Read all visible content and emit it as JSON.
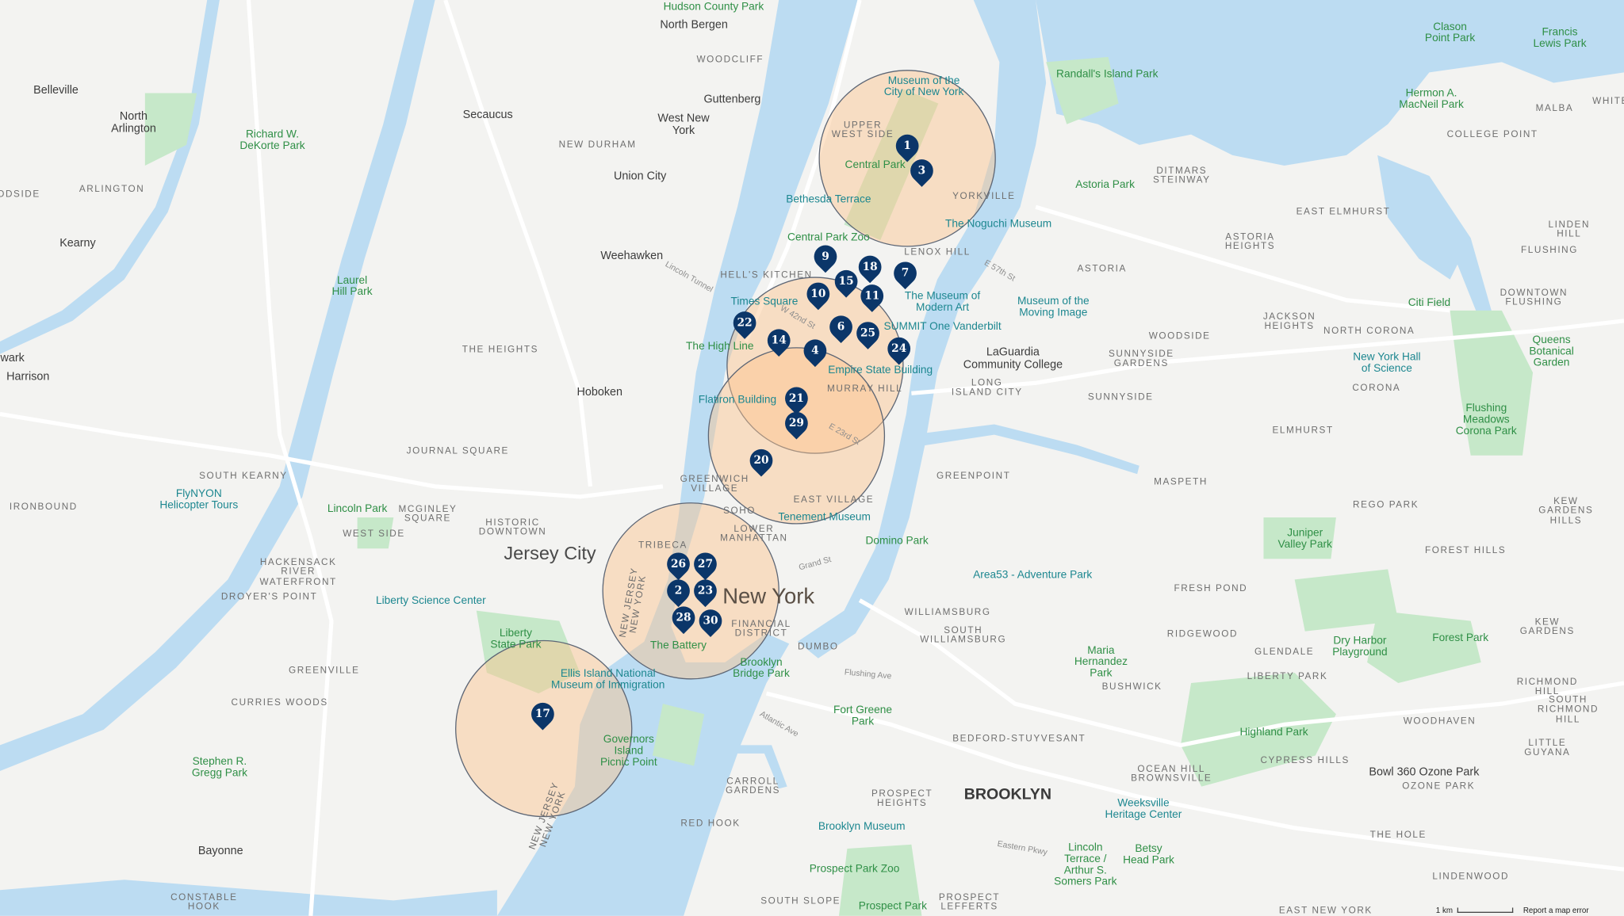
{
  "colors": {
    "water": "#bcdcf2",
    "land": "#f3f3f1",
    "park": "#c6e8c9",
    "marker": "#0b3669",
    "circle_fill": "#fdc48c",
    "circle_stroke": "#5d6675"
  },
  "labels": [
    {
      "text": "Hudson County Park",
      "kind": "park"
    },
    {
      "text": "North Bergen",
      "kind": "city"
    },
    {
      "text": "WOODCLIFF",
      "kind": "nbh"
    },
    {
      "text": "Guttenberg",
      "kind": "city"
    },
    {
      "text": "West New\nYork",
      "kind": "city"
    },
    {
      "text": "Secaucus",
      "kind": "city"
    },
    {
      "text": "NEW DURHAM",
      "kind": "nbh"
    },
    {
      "text": "Union City",
      "kind": "city"
    },
    {
      "text": "Weehawken",
      "kind": "city"
    },
    {
      "text": "Hoboken",
      "kind": "city"
    },
    {
      "text": "Belleville",
      "kind": "city"
    },
    {
      "text": "North\nArlington",
      "kind": "city"
    },
    {
      "text": "ARLINGTON",
      "kind": "nbh"
    },
    {
      "text": "Kearny",
      "kind": "city"
    },
    {
      "text": "Harrison",
      "kind": "city"
    },
    {
      "text": "wark",
      "kind": "city"
    },
    {
      "text": "ODSIDE",
      "kind": "nbh"
    },
    {
      "text": "Richard W.\nDeKorte Park",
      "kind": "park"
    },
    {
      "text": "Laurel\nHill Park",
      "kind": "park"
    },
    {
      "text": "THE HEIGHTS",
      "kind": "nbh"
    },
    {
      "text": "JOURNAL SQUARE",
      "kind": "nbh"
    },
    {
      "text": "SOUTH KEARNY",
      "kind": "nbh"
    },
    {
      "text": "IRONBOUND",
      "kind": "nbh"
    },
    {
      "text": "FlyNYON\nHelicopter Tours",
      "kind": "poi"
    },
    {
      "text": "Lincoln Park",
      "kind": "park"
    },
    {
      "text": "MCGINLEY\nSQUARE",
      "kind": "nbh"
    },
    {
      "text": "WEST SIDE",
      "kind": "nbh"
    },
    {
      "text": "HISTORIC\nDOWNTOWN",
      "kind": "nbh"
    },
    {
      "text": "Jersey City",
      "kind": "big"
    },
    {
      "text": "HACKENSACK\nRIVER\nWATERFRONT",
      "kind": "nbh"
    },
    {
      "text": "DROYER'S POINT",
      "kind": "nbh"
    },
    {
      "text": "Liberty Science Center",
      "kind": "poi"
    },
    {
      "text": "Liberty\nState Park",
      "kind": "park"
    },
    {
      "text": "GREENVILLE",
      "kind": "nbh"
    },
    {
      "text": "CURRIES WOODS",
      "kind": "nbh"
    },
    {
      "text": "Ellis Island National\nMuseum of Immigration",
      "kind": "poi"
    },
    {
      "text": "Governors\nIsland\nPicnic Point",
      "kind": "park"
    },
    {
      "text": "Stephen R.\nGregg Park",
      "kind": "park"
    },
    {
      "text": "Bayonne",
      "kind": "city"
    },
    {
      "text": "CONSTABLE\nHOOK",
      "kind": "nbh"
    },
    {
      "text": "Museum of the\nCity of New York",
      "kind": "poi"
    },
    {
      "text": "UPPER\nWEST SIDE",
      "kind": "nbh"
    },
    {
      "text": "Central Park",
      "kind": "park"
    },
    {
      "text": "YORKVILLE",
      "kind": "nbh"
    },
    {
      "text": "Bethesda Terrace",
      "kind": "poi"
    },
    {
      "text": "Central Park Zoo",
      "kind": "park"
    },
    {
      "text": "The Noguchi Museum",
      "kind": "poi"
    },
    {
      "text": "LENOX HILL",
      "kind": "nbh"
    },
    {
      "text": "HELL'S KITCHEN",
      "kind": "nbh"
    },
    {
      "text": "The Museum of\nModern Art",
      "kind": "poi"
    },
    {
      "text": "Times Square",
      "kind": "poi"
    },
    {
      "text": "SUMMIT One Vanderbilt",
      "kind": "poi"
    },
    {
      "text": "The High Line",
      "kind": "park"
    },
    {
      "text": "Empire State Building",
      "kind": "poi"
    },
    {
      "text": "MURRAY HILL",
      "kind": "nbh"
    },
    {
      "text": "Flatiron Building",
      "kind": "poi"
    },
    {
      "text": "GREENWICH\nVILLAGE",
      "kind": "nbh"
    },
    {
      "text": "EAST VILLAGE",
      "kind": "nbh"
    },
    {
      "text": "Tenement Museum",
      "kind": "poi"
    },
    {
      "text": "SOHO",
      "kind": "nbh"
    },
    {
      "text": "LOWER\nMANHATTAN",
      "kind": "nbh"
    },
    {
      "text": "TRIBECA",
      "kind": "nbh"
    },
    {
      "text": "New York",
      "kind": "xl"
    },
    {
      "text": "FINANCIAL\nDISTRICT",
      "kind": "nbh"
    },
    {
      "text": "The Battery",
      "kind": "park"
    },
    {
      "text": "Domino Park",
      "kind": "park"
    },
    {
      "text": "DUMBO",
      "kind": "nbh"
    },
    {
      "text": "Brooklyn\nBridge Park",
      "kind": "park"
    },
    {
      "text": "Randall's Island Park",
      "kind": "park"
    },
    {
      "text": "Astoria Park",
      "kind": "park"
    },
    {
      "text": "DITMARS\nSTEINWAY",
      "kind": "nbh"
    },
    {
      "text": "ASTORIA\nHEIGHTS",
      "kind": "nbh"
    },
    {
      "text": "ASTORIA",
      "kind": "nbh"
    },
    {
      "text": "Museum of the\nMoving Image",
      "kind": "poi"
    },
    {
      "text": "LaGuardia\nCommunity College",
      "kind": "city"
    },
    {
      "text": "LONG\nISLAND CITY",
      "kind": "nbh"
    },
    {
      "text": "WOODSIDE",
      "kind": "nbh"
    },
    {
      "text": "SUNNYSIDE\nGARDENS",
      "kind": "nbh"
    },
    {
      "text": "SUNNYSIDE",
      "kind": "nbh"
    },
    {
      "text": "JACKSON\nHEIGHTS",
      "kind": "nbh"
    },
    {
      "text": "NORTH CORONA",
      "kind": "nbh"
    },
    {
      "text": "Citi Field",
      "kind": "park"
    },
    {
      "text": "DOWNTOWN\nFLUSHING",
      "kind": "nbh"
    },
    {
      "text": "Queens\nBotanical\nGarden",
      "kind": "park"
    },
    {
      "text": "New York Hall\nof Science",
      "kind": "poi"
    },
    {
      "text": "CORONA",
      "kind": "nbh"
    },
    {
      "text": "ELMHURST",
      "kind": "nbh"
    },
    {
      "text": "Flushing\nMeadows\nCorona Park",
      "kind": "park"
    },
    {
      "text": "GREENPOINT",
      "kind": "nbh"
    },
    {
      "text": "MASPETH",
      "kind": "nbh"
    },
    {
      "text": "REGO PARK",
      "kind": "nbh"
    },
    {
      "text": "KEW GARDENS\nHILLS",
      "kind": "nbh"
    },
    {
      "text": "FOREST HILLS",
      "kind": "nbh"
    },
    {
      "text": "Juniper\nValley Park",
      "kind": "park"
    },
    {
      "text": "Area53 - Adventure Park",
      "kind": "poi"
    },
    {
      "text": "FRESH POND",
      "kind": "nbh"
    },
    {
      "text": "WILLIAMSBURG",
      "kind": "nbh"
    },
    {
      "text": "SOUTH\nWILLIAMSBURG",
      "kind": "nbh"
    },
    {
      "text": "Maria\nHernandez\nPark",
      "kind": "park"
    },
    {
      "text": "RIDGEWOOD",
      "kind": "nbh"
    },
    {
      "text": "GLENDALE",
      "kind": "nbh"
    },
    {
      "text": "Dry Harbor\nPlayground",
      "kind": "park"
    },
    {
      "text": "Forest Park",
      "kind": "park"
    },
    {
      "text": "KEW GARDENS",
      "kind": "nbh"
    },
    {
      "text": "LIBERTY PARK",
      "kind": "nbh"
    },
    {
      "text": "BUSHWICK",
      "kind": "nbh"
    },
    {
      "text": "RICHMOND HILL",
      "kind": "nbh"
    },
    {
      "text": "SOUTH\nRICHMOND HILL",
      "kind": "nbh"
    },
    {
      "text": "WOODHAVEN",
      "kind": "nbh"
    },
    {
      "text": "Fort Greene\nPark",
      "kind": "park"
    },
    {
      "text": "BEDFORD-STUYVESANT",
      "kind": "nbh"
    },
    {
      "text": "Highland Park",
      "kind": "park"
    },
    {
      "text": "LITTLE GUYANA",
      "kind": "nbh"
    },
    {
      "text": "CYPRESS HILLS",
      "kind": "nbh"
    },
    {
      "text": "OCEAN HILL\nBROWNSVILLE",
      "kind": "nbh"
    },
    {
      "text": "Bowl 360 Ozone Park",
      "kind": "city"
    },
    {
      "text": "OZONE PARK",
      "kind": "nbh"
    },
    {
      "text": "CARROLL\nGARDENS",
      "kind": "nbh"
    },
    {
      "text": "PROSPECT\nHEIGHTS",
      "kind": "nbh"
    },
    {
      "text": "BROOKLYN",
      "kind": "bigb"
    },
    {
      "text": "Weeksville\nHeritage Center",
      "kind": "poi"
    },
    {
      "text": "RED HOOK",
      "kind": "nbh"
    },
    {
      "text": "Brooklyn Museum",
      "kind": "poi"
    },
    {
      "text": "THE HOLE",
      "kind": "nbh"
    },
    {
      "text": "Lincoln\nTerrace /\nArthur S.\nSomers Park",
      "kind": "park"
    },
    {
      "text": "Betsy\nHead Park",
      "kind": "park"
    },
    {
      "text": "Prospect Park Zoo",
      "kind": "park"
    },
    {
      "text": "LINDENWOOD",
      "kind": "nbh"
    },
    {
      "text": "SOUTH SLOPE",
      "kind": "nbh"
    },
    {
      "text": "Prospect Park",
      "kind": "park"
    },
    {
      "text": "PROSPECT\nLEFFERTS",
      "kind": "nbh"
    },
    {
      "text": "EAST NEW YORK",
      "kind": "nbh"
    },
    {
      "text": "Clason\nPoint Park",
      "kind": "park"
    },
    {
      "text": "Francis\nLewis Park",
      "kind": "park"
    },
    {
      "text": "Hermon A.\nMacNeil Park",
      "kind": "park"
    },
    {
      "text": "MALBA",
      "kind": "nbh"
    },
    {
      "text": "COLLEGE POINT",
      "kind": "nbh"
    },
    {
      "text": "EAST ELMHURST",
      "kind": "nbh"
    },
    {
      "text": "LINDEN HILL",
      "kind": "nbh"
    },
    {
      "text": "FLUSHING",
      "kind": "nbh"
    },
    {
      "text": "WHITE",
      "kind": "nbh"
    },
    {
      "text": "Lincoln Tunnel",
      "kind": "road"
    },
    {
      "text": "NEW JERSEY\nNEW YORK",
      "kind": "border"
    },
    {
      "text": "NEW JERSEY\nNEW YORK",
      "kind": "border"
    },
    {
      "text": "W 42nd St",
      "kind": "road"
    },
    {
      "text": "E 57th St",
      "kind": "road"
    },
    {
      "text": "E 23rd St",
      "kind": "road"
    },
    {
      "text": "Flushing Ave",
      "kind": "road"
    },
    {
      "text": "Atlantic Ave",
      "kind": "road"
    },
    {
      "text": "Grand St",
      "kind": "road"
    },
    {
      "text": "Eastern Pkwy",
      "kind": "road"
    }
  ],
  "markers": [
    "1",
    "3",
    "9",
    "7",
    "18",
    "15",
    "11",
    "10",
    "22",
    "6",
    "25",
    "14",
    "4",
    "24",
    "21",
    "29",
    "20",
    "26",
    "27",
    "2",
    "23",
    "28",
    "30",
    "17"
  ],
  "footer": {
    "scale_label": "1 km",
    "report_link": "Report a map error"
  }
}
